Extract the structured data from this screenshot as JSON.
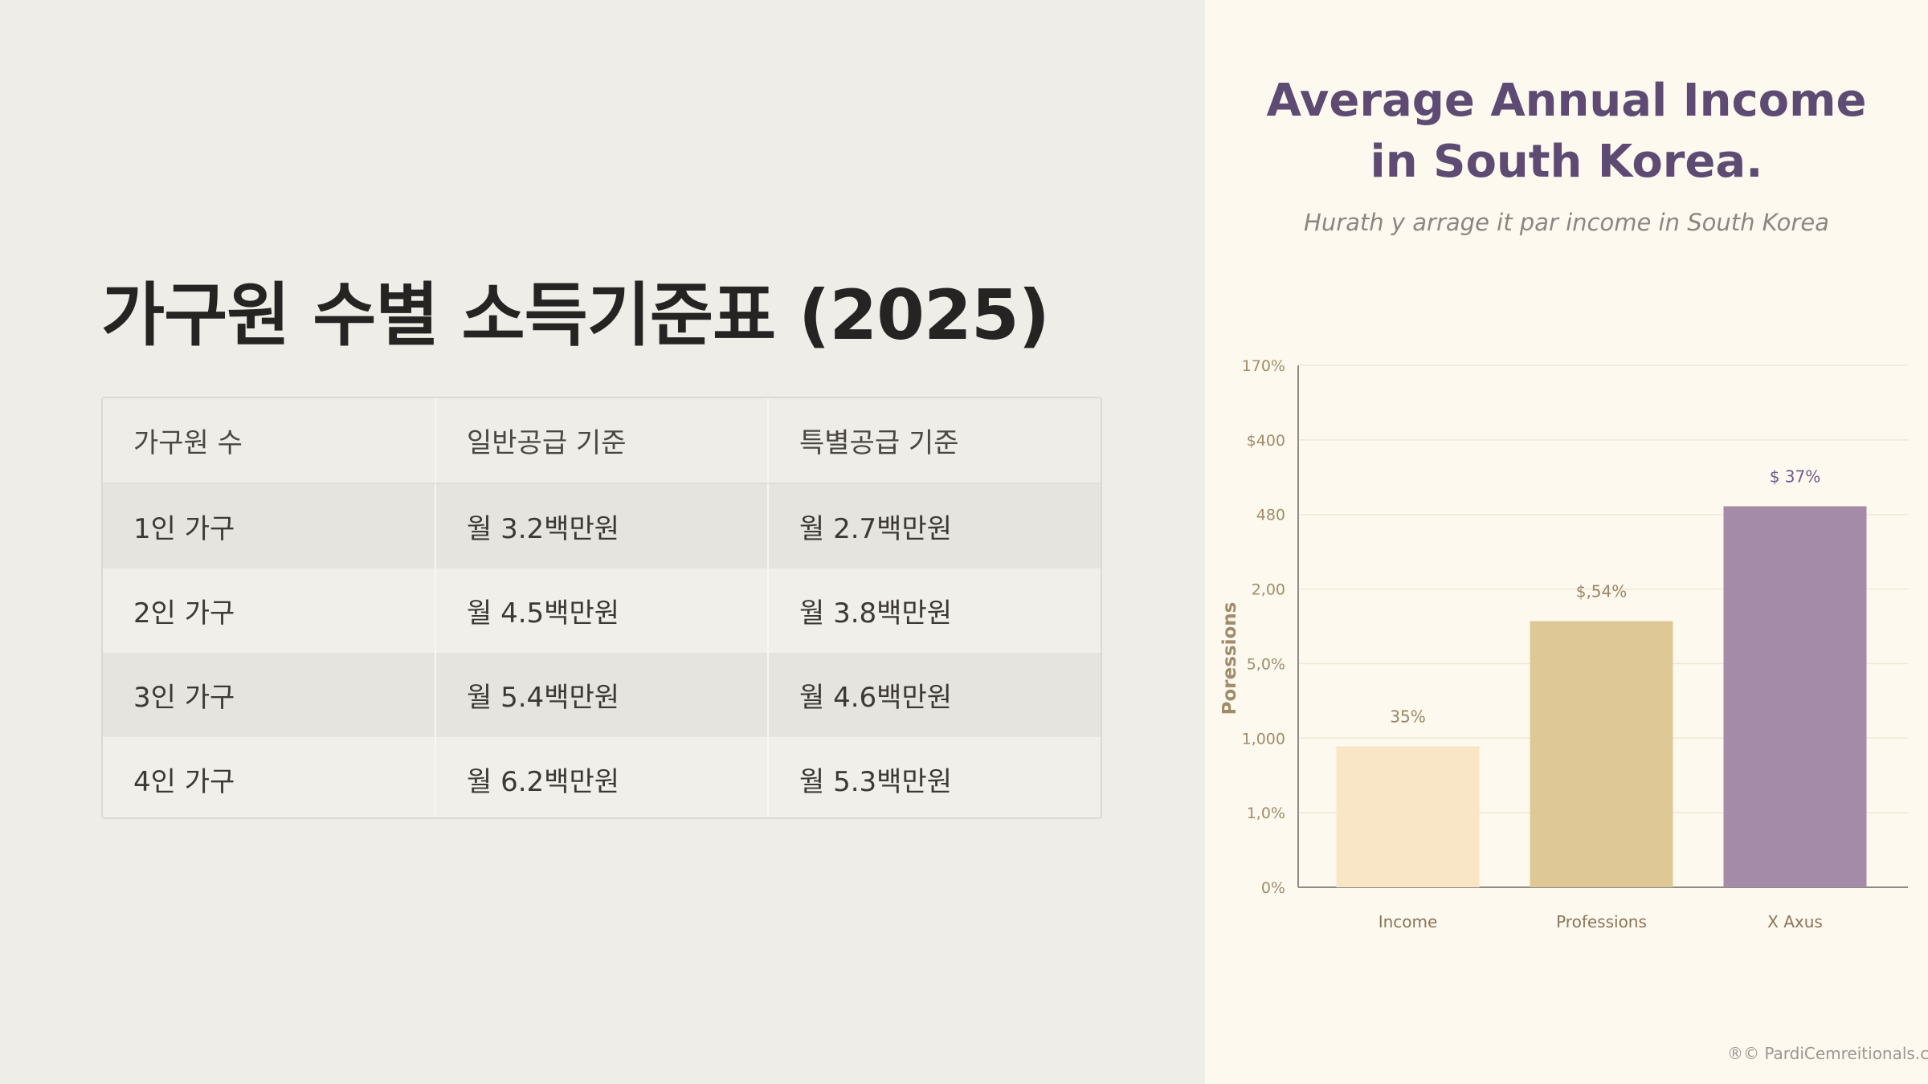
{
  "slide": {
    "title": "가구원 수별 소득기준표 (2025)"
  },
  "table": {
    "headers": [
      "가구원 수",
      "일반공급 기준",
      "특별공급 기준"
    ],
    "rows": [
      [
        "1인 가구",
        "월 3.2백만원",
        "월 2.7백만원"
      ],
      [
        "2인 가구",
        "월 4.5백만원",
        "월 3.8백만원"
      ],
      [
        "3인 가구",
        "월 5.4백만원",
        "월 4.6백만원"
      ],
      [
        "4인 가구",
        "월 6.2백만원",
        "월 5.3백만원"
      ]
    ]
  },
  "chart_data": {
    "type": "bar",
    "title_lines": [
      "Average Annual Income",
      "in South Korea."
    ],
    "subtitle": "Hurath y arrage it par income in South Korea",
    "ylabel": "Poressions",
    "xlabel": "",
    "y_tick_labels": [
      "0%",
      "1,0%",
      "1,000",
      "5,0%",
      "2,00",
      "480",
      "$400",
      "170%"
    ],
    "categories": [
      "Income",
      "Professions",
      "X Axus"
    ],
    "values": [
      0.27,
      0.51,
      0.73
    ],
    "value_scale": "fraction of plotted axis height (tick labels are non-numeric)",
    "data_labels": [
      "35%",
      "$,54%",
      "$ 37%"
    ],
    "colors": [
      "#f8e6c6",
      "#dec996",
      "#a48ba8"
    ],
    "grid": true,
    "legend": "none"
  },
  "footer": {
    "watermark": "®© PardiCemreitionals.c"
  },
  "colors": {
    "left_background": "#efede8",
    "right_background": "#fdf9ee",
    "title_purple": "#5d4b73",
    "axis_gold": "#a08c6a"
  }
}
